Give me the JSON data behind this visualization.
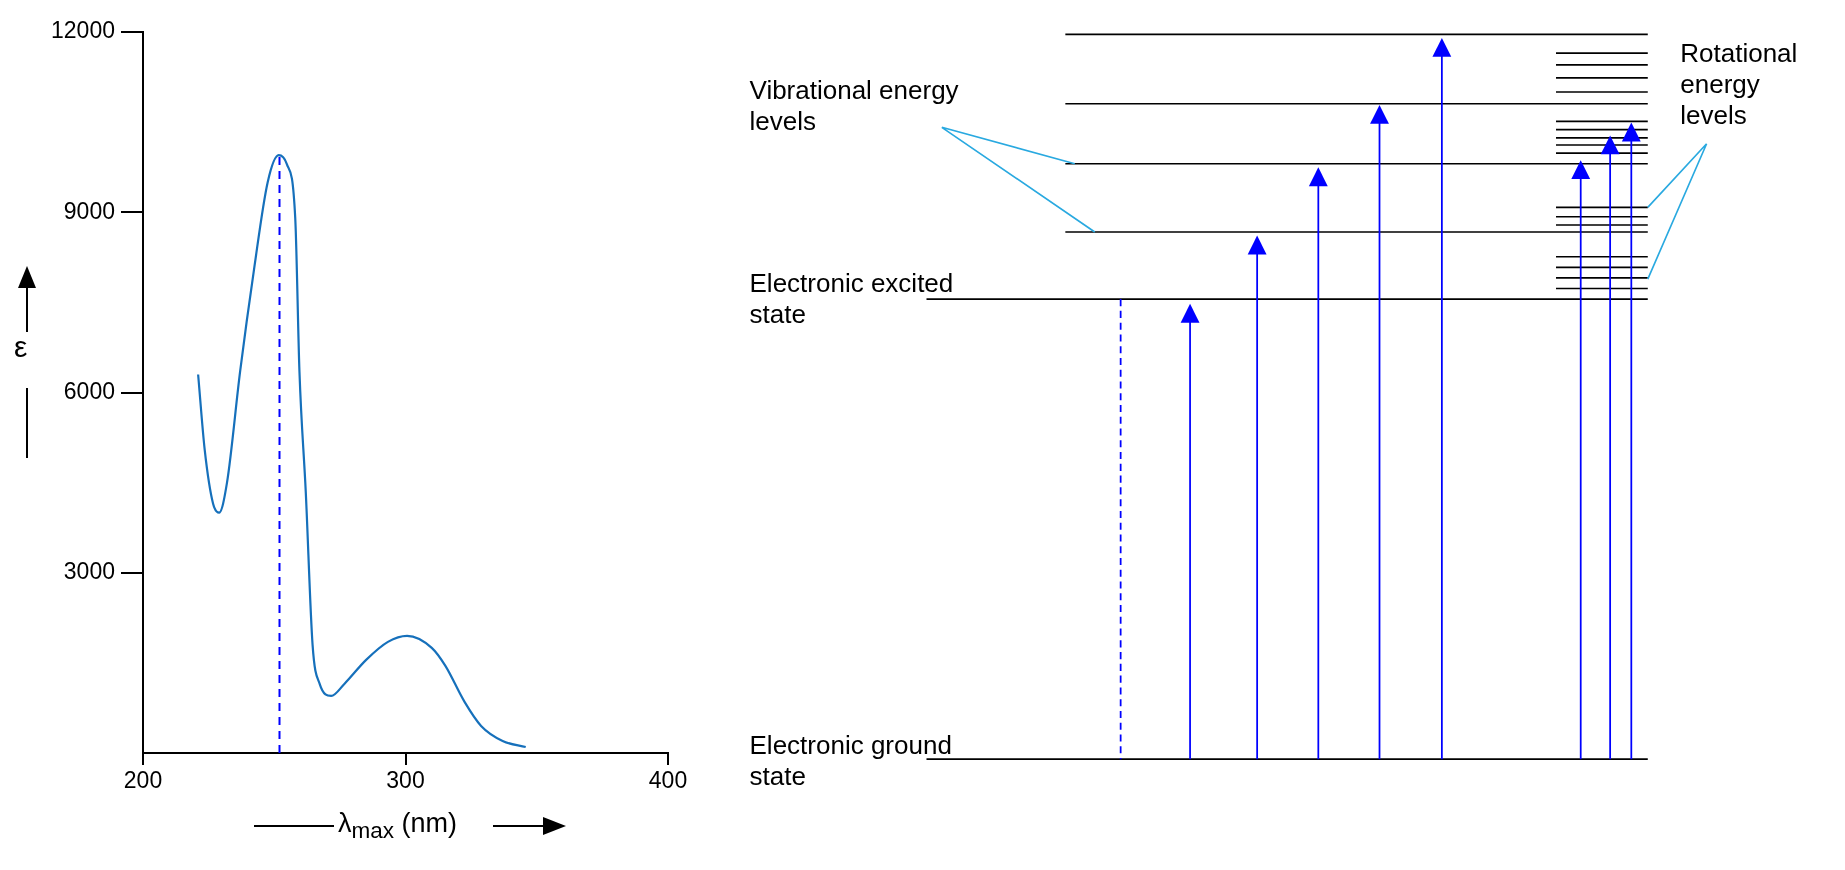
{
  "chart_data": [
    {
      "type": "line",
      "xlabel": "λ$_{max}$ (nm)",
      "ylabel": "ε",
      "x": [
        221,
        223.5,
        226.7,
        229,
        232,
        237,
        242.3,
        247.5,
        251.7,
        254.8,
        258,
        259.6,
        262,
        264.6,
        267.3,
        271.7,
        276.7,
        285,
        293.3,
        300.6,
        310,
        315.2,
        322.5,
        328.8,
        337,
        345.8
      ],
      "series": [
        {
          "color": "#1670bb",
          "values": [
            6300,
            5050,
            4150,
            4000,
            4500,
            6350,
            8050,
            9500,
            9950,
            9800,
            8900,
            6350,
            4350,
            1800,
            1150,
            950,
            1150,
            1550,
            1850,
            1950,
            1750,
            1450,
            850,
            450,
            200,
            100
          ]
        }
      ],
      "xlim": [
        200,
        400
      ],
      "ylim": [
        0,
        12000
      ],
      "xticks": [
        200,
        300,
        400
      ],
      "yticks": [
        3000,
        6000,
        9000,
        12000
      ],
      "grid": false,
      "ref_lines": [
        {
          "axis": "x",
          "value": 252,
          "color": "#0000ff",
          "line_style": "dashed"
        }
      ]
    },
    {
      "type": "other",
      "annotations": [
        "Vibrational energy levels",
        "Electronic excited state",
        "Electronic ground state",
        "Rotational energy levels"
      ]
    }
  ]
}
